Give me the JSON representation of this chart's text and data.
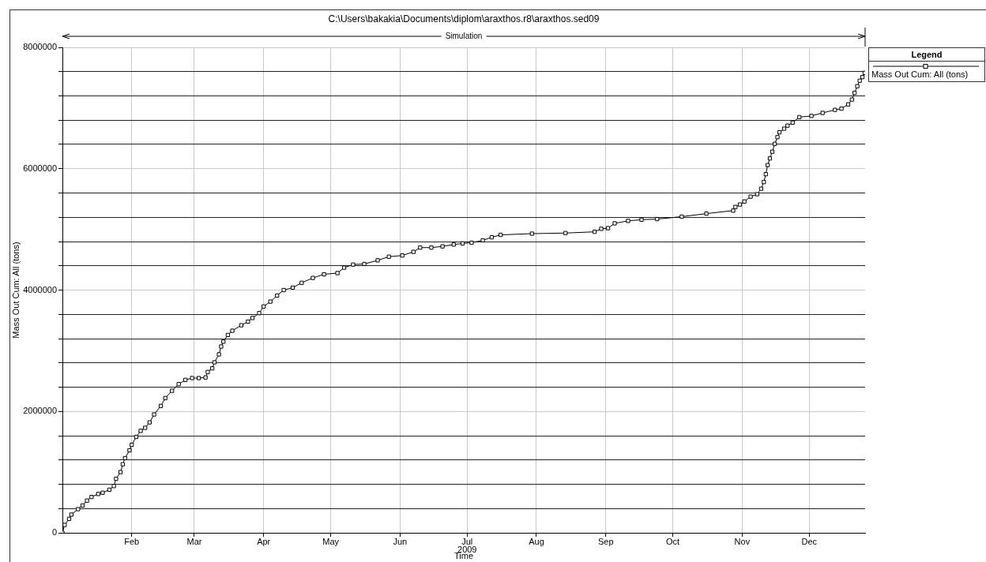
{
  "chart_data": {
    "type": "line",
    "title": "C:\\Users\\bakakia\\Documents\\diplom\\araxthos.r8\\araxthos.sed09",
    "xlabel": "Time",
    "ylabel": "Mass Out Cum: All (tons)",
    "legend_title": "Legend",
    "legend": "right",
    "marker": "square",
    "line_style": "solid",
    "grid": true,
    "xlim": [
      "2009-01-01",
      "2009-12-26"
    ],
    "xticks": [
      {
        "value": "2009-02-01",
        "label": "Feb"
      },
      {
        "value": "2009-03-01",
        "label": "Mar"
      },
      {
        "value": "2009-04-01",
        "label": "Apr"
      },
      {
        "value": "2009-05-01",
        "label": "May"
      },
      {
        "value": "2009-06-01",
        "label": "Jun"
      },
      {
        "value": "2009-07-01",
        "label": "Jul\n2009"
      },
      {
        "value": "2009-08-01",
        "label": "Aug"
      },
      {
        "value": "2009-09-01",
        "label": "Sep"
      },
      {
        "value": "2009-10-01",
        "label": "Oct"
      },
      {
        "value": "2009-11-01",
        "label": "Nov"
      },
      {
        "value": "2009-12-01",
        "label": "Dec"
      }
    ],
    "ylim": [
      0,
      8000000
    ],
    "yticks": [
      0,
      {
        "value": 400000,
        "label": null
      },
      {
        "value": 800000,
        "label": null
      },
      {
        "value": 1200000,
        "label": null
      },
      {
        "value": 1600000,
        "label": null
      },
      2000000,
      {
        "value": 2400000,
        "label": null
      },
      {
        "value": 2800000,
        "label": null
      },
      {
        "value": 3200000,
        "label": null
      },
      {
        "value": 3600000,
        "label": null
      },
      4000000,
      {
        "value": 4400000,
        "label": null
      },
      {
        "value": 4800000,
        "label": null
      },
      {
        "value": 5200000,
        "label": null
      },
      {
        "value": 5600000,
        "label": null
      },
      6000000,
      {
        "value": 6400000,
        "label": null
      },
      {
        "value": 6800000,
        "label": null
      },
      {
        "value": 7200000,
        "label": null
      },
      {
        "value": 7600000,
        "label": null
      },
      8000000
    ],
    "annotations": [
      "Simulation"
    ],
    "x": [
      "2009-01-01",
      "2009-01-02",
      "2009-01-04",
      "2009-01-05",
      "2009-01-08",
      "2009-01-10",
      "2009-01-12",
      "2009-01-14",
      "2009-01-17",
      "2009-01-19",
      "2009-01-22",
      "2009-01-24",
      "2009-01-25",
      "2009-01-27",
      "2009-01-28",
      "2009-01-29",
      "2009-01-31",
      "2009-02-01",
      "2009-02-03",
      "2009-02-05",
      "2009-02-07",
      "2009-02-09",
      "2009-02-11",
      "2009-02-14",
      "2009-02-16",
      "2009-02-19",
      "2009-02-22",
      "2009-02-25",
      "2009-02-28",
      "2009-03-03",
      "2009-03-06",
      "2009-03-07",
      "2009-03-09",
      "2009-03-10",
      "2009-03-12",
      "2009-03-13",
      "2009-03-14",
      "2009-03-16",
      "2009-03-18",
      "2009-03-22",
      "2009-03-25",
      "2009-03-27",
      "2009-03-30",
      "2009-04-01",
      "2009-04-04",
      "2009-04-07",
      "2009-04-10",
      "2009-04-14",
      "2009-04-18",
      "2009-04-23",
      "2009-04-28",
      "2009-05-04",
      "2009-05-07",
      "2009-05-11",
      "2009-05-16",
      "2009-05-22",
      "2009-05-27",
      "2009-06-02",
      "2009-06-07",
      "2009-06-10",
      "2009-06-15",
      "2009-06-20",
      "2009-06-25",
      "2009-06-29",
      "2009-07-03",
      "2009-07-08",
      "2009-07-12",
      "2009-07-16",
      "2009-07-30",
      "2009-08-14",
      "2009-08-27",
      "2009-08-30",
      "2009-09-02",
      "2009-09-05",
      "2009-09-11",
      "2009-09-17",
      "2009-09-24",
      "2009-10-05",
      "2009-10-16",
      "2009-10-28",
      "2009-10-29",
      "2009-10-31",
      "2009-11-02",
      "2009-11-04T19:00",
      "2009-11-07T17:00",
      "2009-11-09T12:00",
      "2009-11-10T17:00",
      "2009-11-11T14:00",
      "2009-11-12T10:00",
      "2009-11-13T10:00",
      "2009-11-14T12:00",
      "2009-11-15T14:00",
      "2009-11-16T19:00",
      "2009-11-17T17:00",
      "2009-11-19T19:00",
      "2009-11-21T07:00",
      "2009-11-23T14:00",
      "2009-11-26T14:00",
      "2009-12-02",
      "2009-12-07",
      "2009-12-12T12:00",
      "2009-12-15T10:00",
      "2009-12-18T10:00",
      "2009-12-20T02:00",
      "2009-12-21T07:00",
      "2009-12-22T12:00",
      "2009-12-23T14:00",
      "2009-12-24T19:00",
      "2009-12-25T19:00"
    ],
    "series": [
      {
        "name": "Mass Out Cum: All (tons)",
        "color": "#000000",
        "values": [
          0,
          130000,
          230000,
          300000,
          390000,
          450000,
          530000,
          590000,
          640000,
          660000,
          710000,
          770000,
          890000,
          1000000,
          1130000,
          1230000,
          1360000,
          1450000,
          1580000,
          1680000,
          1730000,
          1820000,
          1950000,
          2090000,
          2220000,
          2340000,
          2450000,
          2520000,
          2550000,
          2550000,
          2560000,
          2650000,
          2710000,
          2810000,
          2940000,
          3070000,
          3150000,
          3260000,
          3330000,
          3420000,
          3480000,
          3540000,
          3620000,
          3730000,
          3810000,
          3910000,
          4000000,
          4040000,
          4120000,
          4200000,
          4260000,
          4280000,
          4370000,
          4420000,
          4430000,
          4490000,
          4550000,
          4570000,
          4630000,
          4700000,
          4700000,
          4720000,
          4750000,
          4770000,
          4780000,
          4820000,
          4870000,
          4910000,
          4930000,
          4940000,
          4960000,
          5010000,
          5020000,
          5100000,
          5140000,
          5160000,
          5170000,
          5210000,
          5260000,
          5310000,
          5370000,
          5410000,
          5460000,
          5540000,
          5580000,
          5670000,
          5780000,
          5910000,
          6060000,
          6170000,
          6280000,
          6410000,
          6520000,
          6600000,
          6660000,
          6710000,
          6760000,
          6850000,
          6870000,
          6920000,
          6970000,
          6990000,
          7060000,
          7140000,
          7250000,
          7360000,
          7450000,
          7510000,
          7580000
        ]
      }
    ]
  }
}
